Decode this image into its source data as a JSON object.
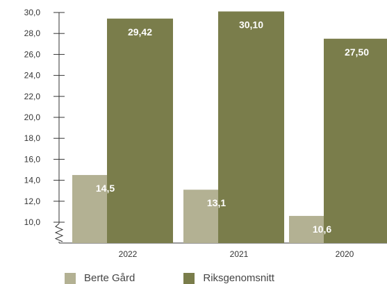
{
  "chart_data": {
    "type": "bar",
    "categories": [
      "2022",
      "2021",
      "2020"
    ],
    "series": [
      {
        "name": "Berte Gård",
        "values": [
          14.5,
          13.1,
          10.6
        ],
        "labels": [
          "14,5",
          "13,1",
          "10,6"
        ],
        "color": "#b3b193"
      },
      {
        "name": "Riksgenomsnitt",
        "values": [
          29.42,
          30.1,
          27.5
        ],
        "labels": [
          "29,42",
          "30,10",
          "27,50"
        ],
        "color": "#7a7d4b"
      }
    ],
    "yticks": [
      "10,0",
      "12,0",
      "14,0",
      "16,0",
      "18,0",
      "20,0",
      "22,0",
      "24,0",
      "26,0",
      "28,0",
      "30,0"
    ],
    "ylim": [
      8,
      30
    ],
    "axis_break": true,
    "legend_position": "bottom-left",
    "title": "",
    "xlabel": "",
    "ylabel": ""
  }
}
